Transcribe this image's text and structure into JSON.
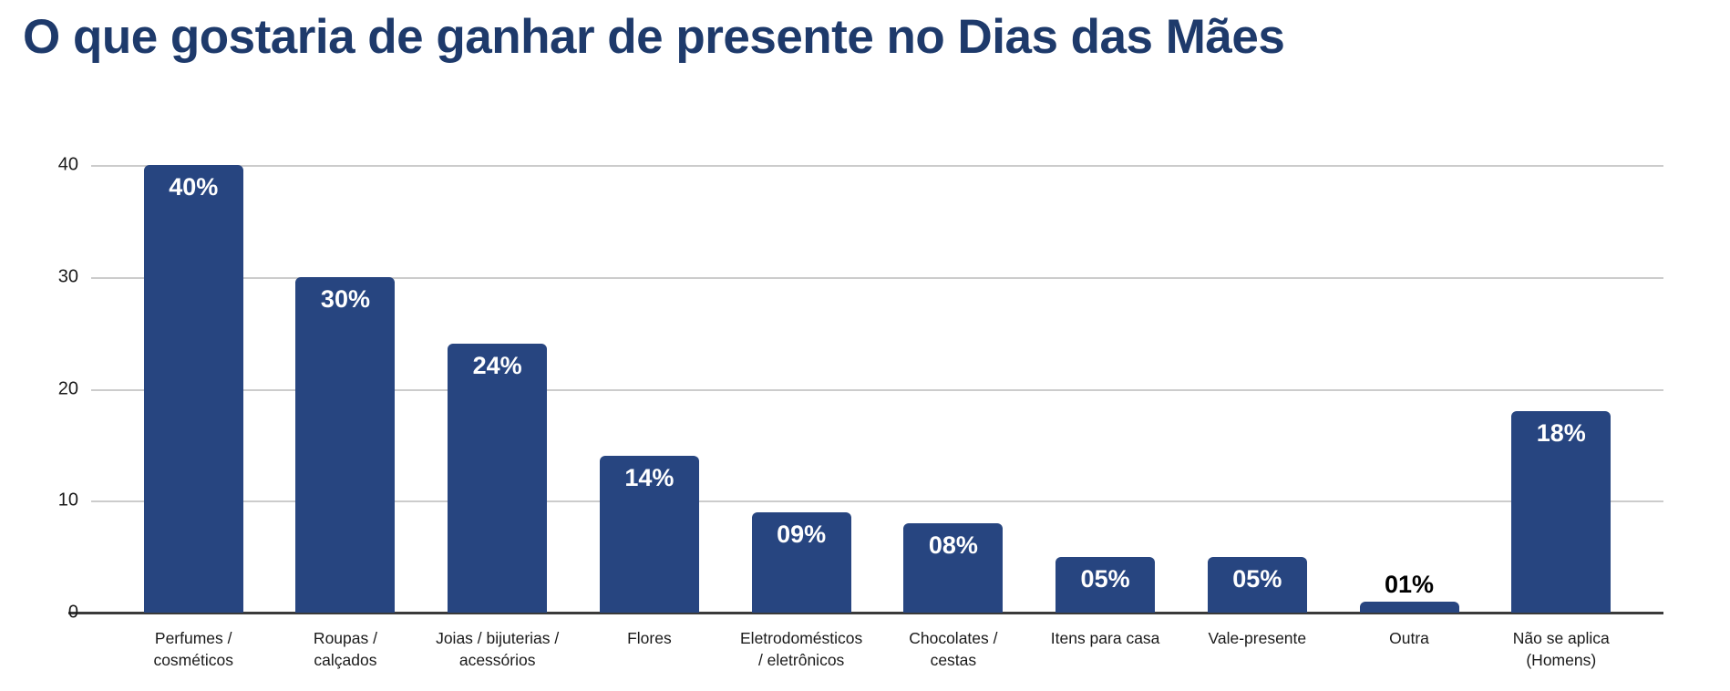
{
  "page": {
    "background": "#ffffff"
  },
  "header": {
    "title": "O que gostaria de ganhar de presente no Dias das Mães"
  },
  "colors": {
    "title": "#1e3a6b",
    "bar": "#274580",
    "gridline": "#cccccc",
    "baseline": "#3a3a3a",
    "tick_label": "#1a1a1a",
    "category_label": "#1a1a1a",
    "value_label_inside": "#ffffff",
    "value_label_above": "#000000",
    "background": "#ffffff"
  },
  "chart_data": {
    "type": "bar",
    "title": "O que gostaria de ganhar de presente no Dias das Mães",
    "xlabel": "",
    "ylabel": "",
    "ylim": [
      0,
      40
    ],
    "yticks": [
      0,
      10,
      20,
      30,
      40
    ],
    "grid": true,
    "legend": false,
    "categories": [
      "Perfumes / cosméticos",
      "Roupas / calçados",
      "Joias / bijuterias / acessórios",
      "Flores",
      "Eletrodomésticos / eletrônicos",
      "Chocolates / cestas",
      "Itens para casa",
      "Vale-presente",
      "Outra",
      "Não se aplica (Homens)"
    ],
    "values": [
      40,
      30,
      24,
      14,
      9,
      8,
      5,
      5,
      1,
      18
    ],
    "points": [
      {
        "category": "Perfumes / cosméticos",
        "category_lines": [
          "Perfumes /",
          "cosméticos"
        ],
        "value": 40,
        "label": "40%",
        "label_position": "inside"
      },
      {
        "category": "Roupas / calçados",
        "category_lines": [
          "Roupas /",
          "calçados"
        ],
        "value": 30,
        "label": "30%",
        "label_position": "inside"
      },
      {
        "category": "Joias / bijuterias / acessórios",
        "category_lines": [
          "Joias / bijuterias /",
          "acessórios"
        ],
        "value": 24,
        "label": "24%",
        "label_position": "inside"
      },
      {
        "category": "Flores",
        "category_lines": [
          "Flores"
        ],
        "value": 14,
        "label": "14%",
        "label_position": "inside"
      },
      {
        "category": "Eletrodomésticos / eletrônicos",
        "category_lines": [
          "Eletrodomésticos",
          "/ eletrônicos"
        ],
        "value": 9,
        "label": "09%",
        "label_position": "inside"
      },
      {
        "category": "Chocolates / cestas",
        "category_lines": [
          "Chocolates /",
          "cestas"
        ],
        "value": 8,
        "label": "08%",
        "label_position": "inside"
      },
      {
        "category": "Itens para casa",
        "category_lines": [
          "Itens para casa"
        ],
        "value": 5,
        "label": "05%",
        "label_position": "inside"
      },
      {
        "category": "Vale-presente",
        "category_lines": [
          "Vale-presente"
        ],
        "value": 5,
        "label": "05%",
        "label_position": "inside"
      },
      {
        "category": "Outra",
        "category_lines": [
          "Outra"
        ],
        "value": 1,
        "label": "01%",
        "label_position": "above"
      },
      {
        "category": "Não se aplica (Homens)",
        "category_lines": [
          "Não se aplica",
          "(Homens)"
        ],
        "value": 18,
        "label": "18%",
        "label_position": "inside"
      }
    ]
  }
}
